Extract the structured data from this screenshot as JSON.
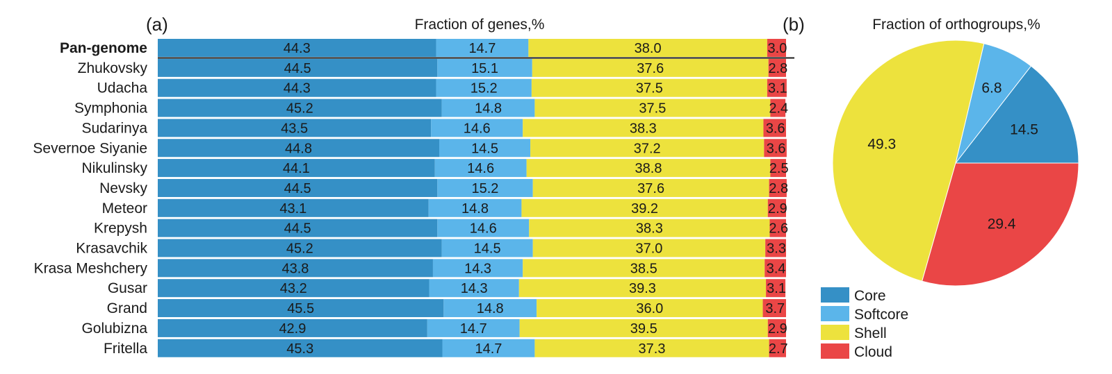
{
  "figure": {
    "panel_a_label": "(a)",
    "panel_b_label": "(b)"
  },
  "colors": {
    "Core": "#3590c6",
    "Softcore": "#5bb5ea",
    "Shell": "#ede23d",
    "Cloud": "#ea4646"
  },
  "chart_data": [
    {
      "type": "bar",
      "orientation": "horizontal",
      "stacked": true,
      "title": "Fraction of genes,%",
      "categories": [
        "Pan-genome",
        "Zhukovsky",
        "Udacha",
        "Symphonia",
        "Sudarinya",
        "Severnoe Siyanie",
        "Nikulinsky",
        "Nevsky",
        "Meteor",
        "Krepysh",
        "Krasavchik",
        "Krasa Meshchery",
        "Gusar",
        "Grand",
        "Golubizna",
        "Fritella"
      ],
      "bold_category": "Pan-genome",
      "series": [
        {
          "name": "Core",
          "values": [
            44.3,
            44.5,
            44.3,
            45.2,
            43.5,
            44.8,
            44.1,
            44.5,
            43.1,
            44.5,
            45.2,
            43.8,
            43.2,
            45.5,
            42.9,
            45.3
          ]
        },
        {
          "name": "Softcore",
          "values": [
            14.7,
            15.1,
            15.2,
            14.8,
            14.6,
            14.5,
            14.6,
            15.2,
            14.8,
            14.6,
            14.5,
            14.3,
            14.3,
            14.8,
            14.7,
            14.7
          ]
        },
        {
          "name": "Shell",
          "values": [
            38.0,
            37.6,
            37.5,
            37.5,
            38.3,
            37.2,
            38.8,
            37.6,
            39.2,
            38.3,
            37.0,
            38.5,
            39.3,
            36.0,
            39.5,
            37.3
          ]
        },
        {
          "name": "Cloud",
          "values": [
            3.0,
            2.8,
            3.1,
            2.4,
            3.6,
            3.6,
            2.5,
            2.8,
            2.9,
            2.6,
            3.3,
            3.4,
            3.1,
            3.7,
            2.9,
            2.7
          ]
        }
      ],
      "xlim": [
        0,
        100
      ]
    },
    {
      "type": "pie",
      "title": "Fraction of orthogroups,%",
      "slices": [
        {
          "name": "Core",
          "value": 14.5
        },
        {
          "name": "Softcore",
          "value": 6.8
        },
        {
          "name": "Shell",
          "value": 49.3
        },
        {
          "name": "Cloud",
          "value": 29.4
        }
      ],
      "legend": [
        "Core",
        "Softcore",
        "Shell",
        "Cloud"
      ],
      "legend_position": "bottom-left"
    }
  ]
}
